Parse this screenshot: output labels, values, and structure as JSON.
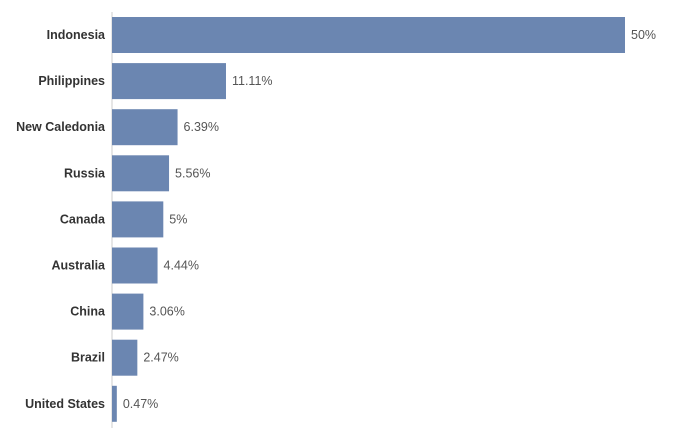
{
  "chart_data": {
    "type": "bar",
    "orientation": "horizontal",
    "categories": [
      "Indonesia",
      "Philippines",
      "New Caledonia",
      "Russia",
      "Canada",
      "Australia",
      "China",
      "Brazil",
      "United States"
    ],
    "values": [
      50,
      11.11,
      6.39,
      5.56,
      5,
      4.44,
      3.06,
      2.47,
      0.47
    ],
    "value_labels": [
      "50%",
      "11.11%",
      "6.39%",
      "5.56%",
      "5%",
      "4.44%",
      "3.06%",
      "2.47%",
      "0.47%"
    ],
    "unit": "%",
    "xlim": [
      0,
      50
    ],
    "grid": false,
    "legend": "none",
    "bar_color": "#6b86b1",
    "axis_color": "#cccccc"
  }
}
